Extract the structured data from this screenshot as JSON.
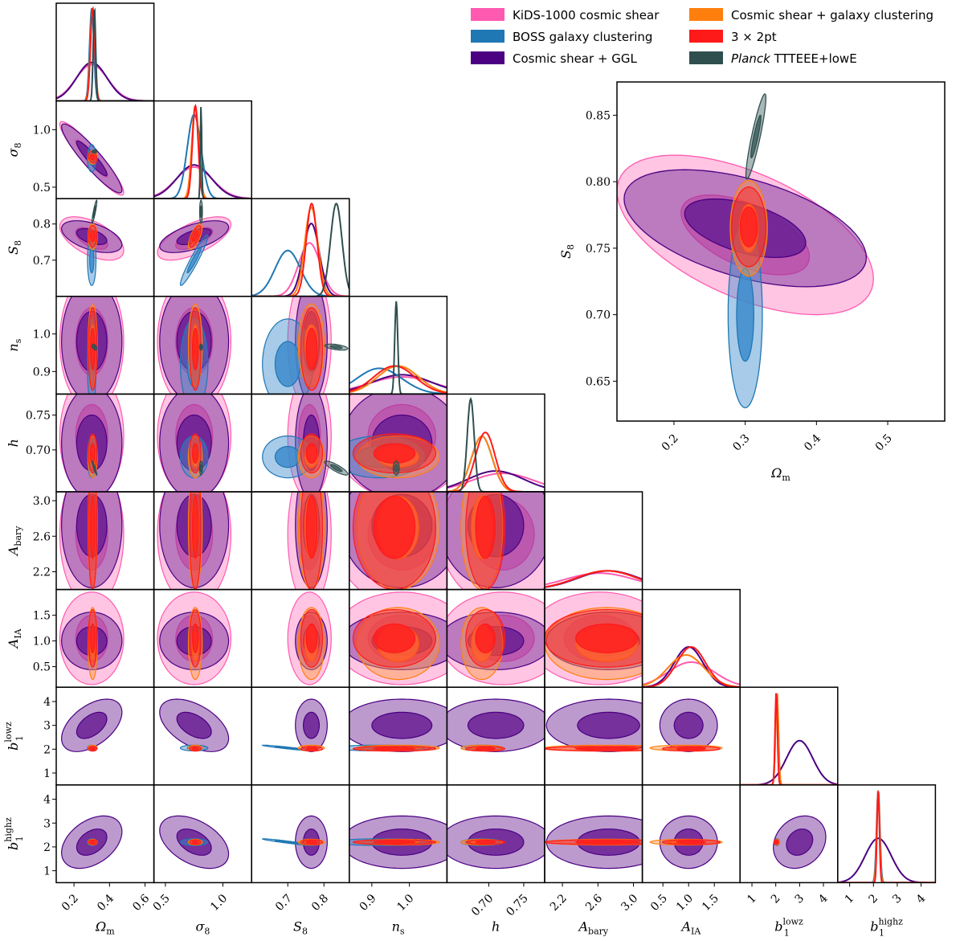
{
  "chart_data": {
    "type": "corner",
    "parameters": [
      {
        "key": "Om",
        "label": "Ω",
        "sub": "m",
        "sup": "",
        "range": [
          0.1,
          0.65
        ],
        "ticks": [
          0.2,
          0.4,
          0.6
        ],
        "tick_labels": [
          "0.2",
          "0.4",
          "0.6"
        ]
      },
      {
        "key": "s8",
        "label": "σ",
        "sub": "8",
        "sup": "",
        "range": [
          0.4,
          1.25
        ],
        "ticks": [
          0.5,
          1.0
        ],
        "tick_labels": [
          "0.5",
          "1.0"
        ]
      },
      {
        "key": "S8",
        "label": "S",
        "sub": "8",
        "sup": "",
        "range": [
          0.6,
          0.87
        ],
        "ticks": [
          0.7,
          0.8
        ],
        "tick_labels": [
          "0.7",
          "0.8"
        ]
      },
      {
        "key": "ns",
        "label": "n",
        "sub": "s",
        "sup": "",
        "range": [
          0.84,
          1.1
        ],
        "ticks": [
          0.9,
          1.0
        ],
        "tick_labels": [
          "0.9",
          "1.0"
        ]
      },
      {
        "key": "h",
        "label": "h",
        "sub": "",
        "sup": "",
        "range": [
          0.64,
          0.78
        ],
        "ticks": [
          0.7,
          0.75
        ],
        "tick_labels": [
          "0.70",
          "0.75"
        ]
      },
      {
        "key": "Ab",
        "label": "A",
        "sub": "bary",
        "sup": "",
        "range": [
          2.0,
          3.1
        ],
        "ticks": [
          2.2,
          2.6,
          3.0
        ],
        "tick_labels": [
          "2.2",
          "2.6",
          "3.0"
        ]
      },
      {
        "key": "AIA",
        "label": "A",
        "sub": "IA",
        "sup": "",
        "range": [
          0.1,
          2.0
        ],
        "ticks": [
          0.5,
          1.0,
          1.5
        ],
        "tick_labels": [
          "0.5",
          "1.0",
          "1.5"
        ]
      },
      {
        "key": "b1",
        "label": "b",
        "sub": "1",
        "sup": "lowz",
        "range": [
          0.5,
          4.6
        ],
        "ticks": [
          1,
          2,
          3,
          4
        ],
        "tick_labels": [
          "1",
          "2",
          "3",
          "4"
        ]
      },
      {
        "key": "b2",
        "label": "b",
        "sub": "1",
        "sup": "highz",
        "range": [
          0.5,
          4.6
        ],
        "ticks": [
          1,
          2,
          3,
          4
        ],
        "tick_labels": [
          "1",
          "2",
          "3",
          "4"
        ]
      }
    ],
    "series": [
      {
        "id": "kids",
        "name": "KiDS-1000 cosmic shear",
        "color": "#ff7ec0",
        "dark": "#ff5ab0",
        "italic": ""
      },
      {
        "id": "boss",
        "name": "BOSS galaxy clustering",
        "color": "#3c8ccc",
        "dark": "#1f77b4",
        "italic": ""
      },
      {
        "id": "ggl",
        "name": "Cosmic shear + GGL",
        "color": "#6a1f93",
        "dark": "#4b0082",
        "italic": ""
      },
      {
        "id": "csgc",
        "name": "Cosmic shear + galaxy clustering",
        "color": "#ff9a40",
        "dark": "#ff7f0e",
        "italic": ""
      },
      {
        "id": "x3",
        "name": "3 × 2pt",
        "color": "#ff2020",
        "dark": "#ff1a1a",
        "italic": ""
      },
      {
        "id": "planck",
        "name": " TTTEEE+lowE",
        "color": "#405f5f",
        "dark": "#2f4f4f",
        "italic": "Planck"
      }
    ],
    "posteriors": {
      "kids": {
        "params": [
          "Om",
          "s8",
          "S8",
          "ns",
          "h",
          "Ab",
          "AIA"
        ],
        "mean": [
          0.3,
          0.75,
          0.76,
          0.98,
          0.72,
          2.62,
          1.05
        ],
        "sd": [
          0.09,
          0.16,
          0.03,
          0.09,
          0.045,
          0.4,
          0.45
        ],
        "corr": [
          [
            "Om",
            "s8",
            -0.93
          ],
          [
            "Om",
            "S8",
            -0.55
          ],
          [
            "s8",
            "S8",
            0.65
          ]
        ]
      },
      "boss": {
        "params": [
          "Om",
          "s8",
          "S8",
          "ns",
          "h",
          "b1",
          "b2"
        ],
        "mean": [
          0.3,
          0.75,
          0.7,
          0.92,
          0.69,
          2.05,
          2.2
        ],
        "sd": [
          0.012,
          0.06,
          0.035,
          0.06,
          0.015,
          0.06,
          0.07
        ],
        "corr": [
          [
            "s8",
            "S8",
            0.95
          ],
          [
            "S8",
            "b1",
            -0.95
          ],
          [
            "S8",
            "b2",
            -0.95
          ]
        ]
      },
      "ggl": {
        "params": [
          "Om",
          "s8",
          "S8",
          "ns",
          "h",
          "Ab",
          "AIA",
          "b1",
          "b2"
        ],
        "mean": [
          0.3,
          0.75,
          0.765,
          0.98,
          0.71,
          2.72,
          1.0,
          3.0,
          2.2
        ],
        "sd": [
          0.085,
          0.15,
          0.022,
          0.08,
          0.04,
          0.35,
          0.28,
          0.55,
          0.55
        ],
        "corr": [
          [
            "Om",
            "s8",
            -0.92
          ],
          [
            "Om",
            "S8",
            -0.5
          ],
          [
            "s8",
            "S8",
            0.6
          ],
          [
            "Om",
            "b1",
            0.5
          ],
          [
            "s8",
            "b1",
            -0.5
          ],
          [
            "Om",
            "b2",
            0.4
          ],
          [
            "s8",
            "b2",
            -0.45
          ],
          [
            "b1",
            "b2",
            0.2
          ]
        ]
      },
      "csgc": {
        "params": [
          "Om",
          "s8",
          "S8",
          "ns",
          "h",
          "Ab",
          "AIA",
          "b1",
          "b2"
        ],
        "mean": [
          0.305,
          0.76,
          0.765,
          0.97,
          0.69,
          2.7,
          0.95,
          2.05,
          2.2
        ],
        "sd": [
          0.013,
          0.03,
          0.018,
          0.055,
          0.015,
          0.35,
          0.35,
          0.06,
          0.06
        ],
        "corr": [
          [
            "s8",
            "S8",
            0.7
          ]
        ]
      },
      "x3": {
        "params": [
          "Om",
          "s8",
          "S8",
          "ns",
          "h",
          "Ab",
          "AIA",
          "b1",
          "b2"
        ],
        "mean": [
          0.305,
          0.76,
          0.766,
          0.96,
          0.695,
          2.7,
          1.05,
          2.02,
          2.2
        ],
        "sd": [
          0.012,
          0.025,
          0.015,
          0.055,
          0.014,
          0.35,
          0.28,
          0.05,
          0.05
        ],
        "corr": [
          [
            "s8",
            "S8",
            0.7
          ],
          [
            "Om",
            "s8",
            -0.2
          ]
        ]
      },
      "planck": {
        "params": [
          "Om",
          "s8",
          "S8",
          "ns",
          "h"
        ],
        "mean": [
          0.315,
          0.81,
          0.834,
          0.965,
          0.674
        ],
        "sd": [
          0.007,
          0.006,
          0.016,
          0.004,
          0.005
        ],
        "corr": [
          [
            "Om",
            "S8",
            0.9
          ],
          [
            "Om",
            "h",
            -0.95
          ],
          [
            "S8",
            "h",
            -0.85
          ],
          [
            "S8",
            "ns",
            -0.5
          ],
          [
            "Om",
            "ns",
            -0.5
          ]
        ]
      }
    },
    "draw_order": [
      "kids",
      "ggl",
      "boss",
      "csgc",
      "x3",
      "planck"
    ],
    "zoom": {
      "x": "Om",
      "y": "S8",
      "xrange": [
        0.12,
        0.58
      ],
      "yrange": [
        0.62,
        0.875
      ],
      "xticks": [
        0.2,
        0.3,
        0.4,
        0.5
      ],
      "xtick_labels": [
        "0.2",
        "0.3",
        "0.4",
        "0.5"
      ],
      "yticks": [
        0.65,
        0.7,
        0.75,
        0.8,
        0.85
      ],
      "ytick_labels": [
        "0.65",
        "0.70",
        "0.75",
        "0.80",
        "0.85"
      ]
    }
  }
}
